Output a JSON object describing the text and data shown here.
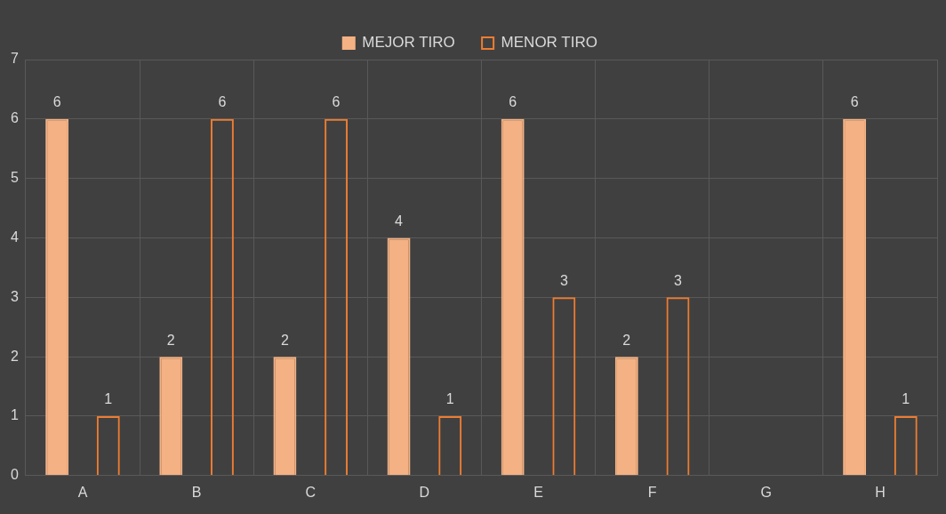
{
  "chart_data": {
    "type": "bar",
    "categories": [
      "A",
      "B",
      "C",
      "D",
      "E",
      "F",
      "G",
      "H"
    ],
    "series": [
      {
        "name": "MEJOR TIRO",
        "color": "#f4b183",
        "values": [
          6,
          2,
          2,
          4,
          6,
          2,
          null,
          6
        ]
      },
      {
        "name": "MENOR TIRO",
        "color": "#ed7d31",
        "values": [
          1,
          6,
          6,
          1,
          3,
          3,
          null,
          1
        ]
      }
    ],
    "ylim": [
      0,
      7
    ],
    "yticks": [
      0,
      1,
      2,
      3,
      4,
      5,
      6,
      7
    ],
    "grid": true,
    "legend": "top",
    "data_labels": true
  }
}
